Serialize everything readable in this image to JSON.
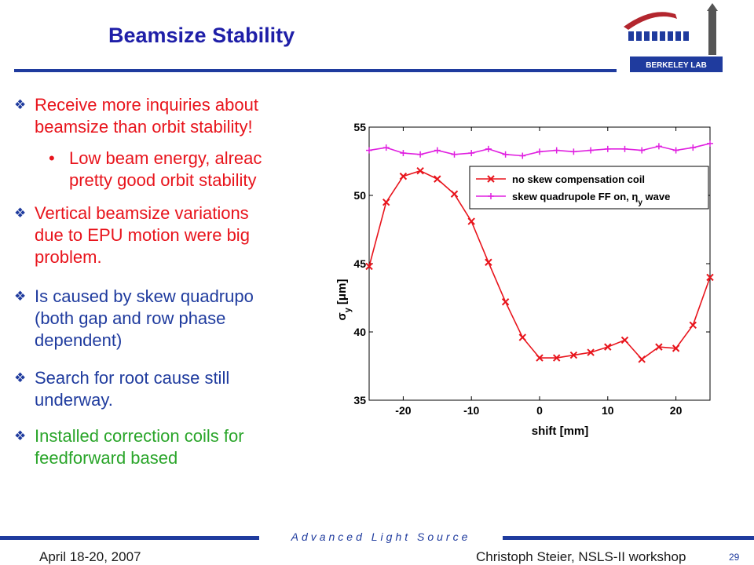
{
  "slide": {
    "title": "Beamsize Stability",
    "bullets": [
      {
        "lines": [
          "Receive more inquiries about",
          "beamsize than orbit stability!"
        ]
      },
      {
        "lines": [
          "Low beam energy, alreac",
          "pretty good orbit stability"
        ]
      },
      {
        "lines": [
          "Vertical beamsize variations",
          "due to EPU motion were big",
          "problem."
        ]
      },
      {
        "lines": [
          "Is caused by skew quadrupo",
          "(both gap and row phase",
          "dependent)"
        ]
      },
      {
        "lines": [
          "Search for root cause still",
          "underway."
        ]
      },
      {
        "lines": [
          "Installed correction coils for",
          "feedforward based"
        ]
      }
    ],
    "sub_bullet_marker": "•",
    "diamond_glyph": "❖"
  },
  "logo": {
    "text": "BERKELEY LAB"
  },
  "footer": {
    "center": "Advanced Light Source",
    "left": "April 18-20, 2007",
    "right": "Christoph Steier, NSLS-II workshop",
    "page": "29"
  },
  "chart_data": {
    "type": "line",
    "xlabel": "shift [mm]",
    "ylabel": "σ_y [μm]",
    "ylabel_parts": {
      "sym": "σ",
      "sub": "y",
      "unit": "[μm]"
    },
    "xlim": [
      -25,
      25
    ],
    "ylim": [
      35,
      55
    ],
    "xticks": [
      -20,
      -10,
      0,
      10,
      20
    ],
    "yticks": [
      35,
      40,
      45,
      50,
      55
    ],
    "grid": false,
    "legend_position": "top-right",
    "series": [
      {
        "name": "no skew compensation coil",
        "color": "#e8141c",
        "marker": "x",
        "x": [
          -25,
          -22.5,
          -20,
          -17.5,
          -15,
          -12.5,
          -10,
          -7.5,
          -5,
          -2.5,
          0,
          2.5,
          5,
          7.5,
          10,
          12.5,
          15,
          17.5,
          20,
          22.5,
          25
        ],
        "y": [
          44.8,
          49.5,
          51.4,
          51.8,
          51.2,
          50.1,
          48.1,
          45.1,
          42.2,
          39.6,
          38.1,
          38.1,
          38.3,
          38.5,
          38.9,
          39.4,
          38.0,
          38.9,
          38.8,
          40.5,
          44.0
        ]
      },
      {
        "name": "skew quadrupole FF on, η_y wave",
        "label_parts": {
          "pre": "skew quadrupole FF on, ",
          "sym": "η",
          "sub": "y",
          "post": " wave"
        },
        "color": "#e020e0",
        "marker": "+",
        "x": [
          -25,
          -22.5,
          -20,
          -17.5,
          -15,
          -12.5,
          -10,
          -7.5,
          -5,
          -2.5,
          0,
          2.5,
          5,
          7.5,
          10,
          12.5,
          15,
          17.5,
          20,
          22.5,
          25
        ],
        "y": [
          53.3,
          53.5,
          53.1,
          53.0,
          53.3,
          53.0,
          53.1,
          53.4,
          53.0,
          52.9,
          53.2,
          53.3,
          53.2,
          53.3,
          53.4,
          53.4,
          53.3,
          53.6,
          53.3,
          53.5,
          53.8
        ]
      }
    ]
  }
}
